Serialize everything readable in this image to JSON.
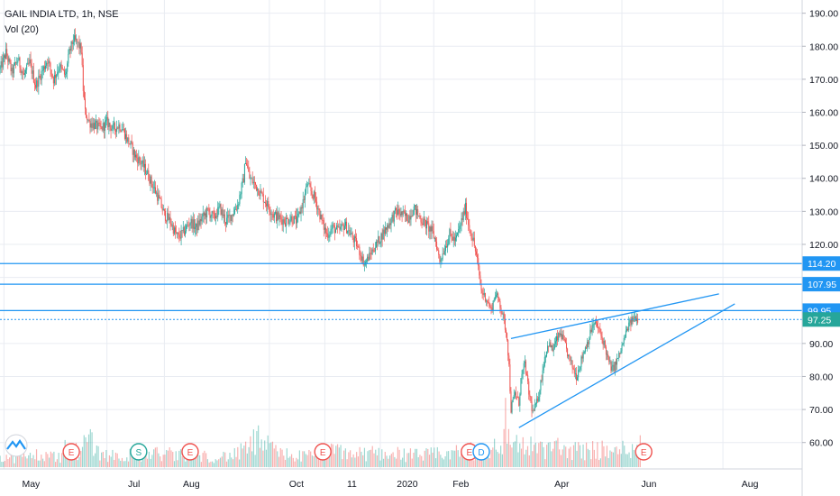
{
  "header": {
    "symbol_line": "GAIL INDIA LTD, 1h, NSE",
    "volume_line": "Vol (20)"
  },
  "colors": {
    "up": "#26a69a",
    "down": "#ef5350",
    "hline": "#2196f3",
    "trend": "#2196f3",
    "last_price": "#26a69a",
    "grid": "#e9ecf2",
    "axis_text": "#131722"
  },
  "chart_data": {
    "type": "candlestick",
    "title": "GAIL INDIA LTD, 1h, NSE",
    "y_axis": {
      "position": "right",
      "min": 52,
      "max": 194,
      "ticks": [
        "60.00",
        "70.00",
        "80.00",
        "90.00",
        "100.00",
        "110.00",
        "120.00",
        "130.00",
        "140.00",
        "150.00",
        "160.00",
        "170.00",
        "180.00",
        "190.00"
      ],
      "tick_values": [
        60,
        70,
        80,
        90,
        100,
        110,
        120,
        130,
        140,
        150,
        160,
        170,
        180,
        190
      ]
    },
    "x_axis": {
      "range": [
        0,
        405
      ],
      "labels": [
        {
          "text": "May",
          "x": 2
        },
        {
          "text": "Jul",
          "x": 54
        },
        {
          "text": "Aug",
          "x": 83
        },
        {
          "text": "Oct",
          "x": 136
        },
        {
          "text": "11",
          "x": 164
        },
        {
          "text": "2020",
          "x": 192
        },
        {
          "text": "Feb",
          "x": 219
        },
        {
          "text": "Apr",
          "x": 270
        },
        {
          "text": "Jun",
          "x": 314
        },
        {
          "text": "Aug",
          "x": 365
        }
      ]
    },
    "grid": true,
    "price_anchors": [
      [
        0,
        173
      ],
      [
        3,
        178
      ],
      [
        6,
        172
      ],
      [
        9,
        176
      ],
      [
        12,
        171
      ],
      [
        15,
        175
      ],
      [
        18,
        168
      ],
      [
        21,
        172
      ],
      [
        24,
        176
      ],
      [
        27,
        170
      ],
      [
        30,
        174
      ],
      [
        33,
        171
      ],
      [
        35,
        178
      ],
      [
        37,
        182
      ],
      [
        39,
        181
      ],
      [
        41,
        179
      ],
      [
        42,
        167
      ],
      [
        43,
        160
      ],
      [
        45,
        157
      ],
      [
        48,
        156
      ],
      [
        51,
        155
      ],
      [
        54,
        157
      ],
      [
        57,
        155
      ],
      [
        60,
        156
      ],
      [
        62,
        155
      ],
      [
        64,
        152
      ],
      [
        66,
        150
      ],
      [
        68,
        147
      ],
      [
        71,
        145
      ],
      [
        74,
        142
      ],
      [
        77,
        138
      ],
      [
        80,
        134
      ],
      [
        83,
        129
      ],
      [
        86,
        127
      ],
      [
        88,
        124
      ],
      [
        90,
        122
      ],
      [
        93,
        124
      ],
      [
        96,
        127
      ],
      [
        99,
        125
      ],
      [
        102,
        128
      ],
      [
        105,
        130
      ],
      [
        108,
        128
      ],
      [
        111,
        131
      ],
      [
        114,
        127
      ],
      [
        117,
        129
      ],
      [
        120,
        132
      ],
      [
        123,
        140
      ],
      [
        124,
        146
      ],
      [
        126,
        140
      ],
      [
        129,
        138
      ],
      [
        132,
        135
      ],
      [
        135,
        132
      ],
      [
        138,
        129
      ],
      [
        141,
        128
      ],
      [
        144,
        127
      ],
      [
        147,
        128
      ],
      [
        150,
        127
      ],
      [
        152,
        131
      ],
      [
        154,
        135
      ],
      [
        155,
        138
      ],
      [
        157,
        136
      ],
      [
        159,
        134
      ],
      [
        161,
        130
      ],
      [
        163,
        126
      ],
      [
        165,
        123
      ],
      [
        168,
        125
      ],
      [
        171,
        124
      ],
      [
        174,
        126
      ],
      [
        177,
        123
      ],
      [
        180,
        120
      ],
      [
        182,
        117
      ],
      [
        184,
        114
      ],
      [
        186,
        116
      ],
      [
        188,
        118
      ],
      [
        191,
        121
      ],
      [
        194,
        124
      ],
      [
        197,
        127
      ],
      [
        200,
        130
      ],
      [
        203,
        129
      ],
      [
        206,
        128
      ],
      [
        209,
        131
      ],
      [
        212,
        128
      ],
      [
        215,
        126
      ],
      [
        218,
        124
      ],
      [
        220,
        121
      ],
      [
        222,
        115
      ],
      [
        224,
        118
      ],
      [
        227,
        123
      ],
      [
        230,
        121
      ],
      [
        233,
        127
      ],
      [
        235,
        131
      ],
      [
        237,
        125
      ],
      [
        239,
        121
      ],
      [
        241,
        115
      ],
      [
        243,
        106
      ],
      [
        246,
        103
      ],
      [
        248,
        100
      ],
      [
        250,
        105
      ],
      [
        252,
        103
      ],
      [
        254,
        98
      ],
      [
        256,
        92
      ],
      [
        257,
        83
      ],
      [
        258,
        70
      ],
      [
        260,
        75
      ],
      [
        262,
        72
      ],
      [
        263,
        79
      ],
      [
        265,
        84
      ],
      [
        267,
        75
      ],
      [
        269,
        69
      ],
      [
        271,
        72
      ],
      [
        273,
        78
      ],
      [
        275,
        86
      ],
      [
        277,
        90
      ],
      [
        279,
        88
      ],
      [
        281,
        91
      ],
      [
        283,
        93
      ],
      [
        285,
        90
      ],
      [
        287,
        86
      ],
      [
        289,
        83
      ],
      [
        291,
        80
      ],
      [
        293,
        84
      ],
      [
        295,
        88
      ],
      [
        297,
        91
      ],
      [
        299,
        95
      ],
      [
        301,
        96
      ],
      [
        303,
        93
      ],
      [
        305,
        90
      ],
      [
        307,
        85
      ],
      [
        309,
        82
      ],
      [
        311,
        84
      ],
      [
        313,
        87
      ],
      [
        315,
        91
      ],
      [
        317,
        95
      ],
      [
        319,
        97
      ],
      [
        321,
        98
      ],
      [
        322,
        97.25
      ]
    ],
    "volume_anchors": [
      [
        0,
        0.12
      ],
      [
        10,
        0.1
      ],
      [
        20,
        0.14
      ],
      [
        30,
        0.11
      ],
      [
        40,
        0.18
      ],
      [
        45,
        0.35
      ],
      [
        50,
        0.16
      ],
      [
        60,
        0.12
      ],
      [
        70,
        0.14
      ],
      [
        80,
        0.15
      ],
      [
        90,
        0.13
      ],
      [
        100,
        0.12
      ],
      [
        110,
        0.11
      ],
      [
        120,
        0.14
      ],
      [
        130,
        0.3
      ],
      [
        140,
        0.16
      ],
      [
        150,
        0.12
      ],
      [
        160,
        0.13
      ],
      [
        170,
        0.18
      ],
      [
        180,
        0.14
      ],
      [
        190,
        0.16
      ],
      [
        200,
        0.15
      ],
      [
        210,
        0.13
      ],
      [
        220,
        0.14
      ],
      [
        230,
        0.16
      ],
      [
        240,
        0.18
      ],
      [
        250,
        0.22
      ],
      [
        255,
        0.3
      ],
      [
        260,
        0.28
      ],
      [
        265,
        0.24
      ],
      [
        270,
        0.2
      ],
      [
        280,
        0.22
      ],
      [
        290,
        0.18
      ],
      [
        300,
        0.2
      ],
      [
        310,
        0.16
      ],
      [
        320,
        0.24
      ]
    ],
    "horizontal_lines": [
      {
        "value": 114.2,
        "label": "114.20"
      },
      {
        "value": 107.95,
        "label": "107.95"
      },
      {
        "value": 99.95,
        "label": "99.95"
      }
    ],
    "dotted_lines": [
      {
        "value": 97.25
      }
    ],
    "last_price": {
      "value": 97.25,
      "label": "97.25"
    },
    "trend_lines": [
      {
        "x1": 258,
        "y1": 91.5,
        "x2": 363,
        "y2": 105
      },
      {
        "x1": 262,
        "y1": 64.5,
        "x2": 371,
        "y2": 102
      }
    ],
    "event_markers": [
      {
        "x": 5,
        "label": "logo",
        "kind": "logo"
      },
      {
        "x": 36,
        "label": "E",
        "kind": "earnings"
      },
      {
        "x": 70,
        "label": "S",
        "kind": "split"
      },
      {
        "x": 96,
        "label": "E",
        "kind": "earnings"
      },
      {
        "x": 163,
        "label": "E",
        "kind": "earnings"
      },
      {
        "x": 237,
        "label": "E",
        "kind": "earnings"
      },
      {
        "x": 243,
        "label": "D",
        "kind": "dividend"
      },
      {
        "x": 325,
        "label": "E",
        "kind": "earnings"
      }
    ]
  }
}
